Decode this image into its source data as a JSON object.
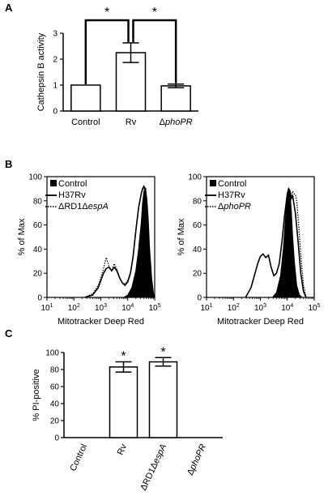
{
  "panels": [
    {
      "letter": "A"
    },
    {
      "letter": "B"
    },
    {
      "letter": "C"
    }
  ],
  "chart_data": [
    {
      "type": "bar",
      "panel": "A",
      "ylabel": "Cathepsin B activity",
      "ylim": [
        0,
        3
      ],
      "yticks": [
        "0",
        "1",
        "2",
        "3"
      ],
      "categories": [
        {
          "pre": "Control",
          "it": "",
          "post": ""
        },
        {
          "pre": "Rv",
          "it": "",
          "post": ""
        },
        {
          "pre": "Δ",
          "it": "phoPR",
          "post": ""
        }
      ],
      "values": [
        1.0,
        2.25,
        0.97
      ],
      "errors": [
        0,
        0.38,
        0.07
      ],
      "significance": [
        {
          "from": 0,
          "to": 1,
          "label": "*"
        },
        {
          "from": 1,
          "to": 2,
          "label": "*"
        }
      ]
    },
    {
      "type": "line",
      "panel": "B-left",
      "ylabel": "% of Max",
      "xlabel": "Mitotracker Deep Red",
      "ylim": [
        0,
        100
      ],
      "yticks": [
        "0",
        "20",
        "40",
        "60",
        "80",
        "100"
      ],
      "xscale": "log",
      "xlim": [
        1,
        5
      ],
      "xticks": [
        {
          "base": "10",
          "exp": "1"
        },
        {
          "base": "10",
          "exp": "2"
        },
        {
          "base": "10",
          "exp": "3"
        },
        {
          "base": "10",
          "exp": "4"
        },
        {
          "base": "10",
          "exp": "5"
        }
      ],
      "legend": [
        {
          "pre": "Control",
          "it": "",
          "mid": "",
          "it2": "",
          "style": "filled"
        },
        {
          "pre": "H37Rv",
          "it": "",
          "mid": "",
          "it2": "",
          "style": "solid"
        },
        {
          "pre": "ΔRD1Δ",
          "it": "espA",
          "mid": "",
          "it2": "",
          "style": "dotted"
        }
      ],
      "series": [
        {
          "style": "filled",
          "x": [
            3.85,
            4.0,
            4.15,
            4.3,
            4.4,
            4.5,
            4.55,
            4.6,
            4.67,
            4.73,
            4.8,
            4.88,
            4.95,
            5.0
          ],
          "y": [
            0,
            2,
            8,
            22,
            40,
            62,
            78,
            88,
            90,
            72,
            42,
            14,
            3,
            0
          ]
        },
        {
          "style": "solid",
          "x": [
            2.4,
            2.7,
            2.9,
            3.0,
            3.1,
            3.2,
            3.3,
            3.4,
            3.5,
            3.6,
            3.7,
            3.8,
            3.9,
            4.0,
            4.1,
            4.2,
            4.3,
            4.4,
            4.5,
            4.55,
            4.6,
            4.65,
            4.7,
            4.75,
            4.8,
            4.88,
            4.95,
            5.0
          ],
          "y": [
            0,
            2,
            8,
            14,
            20,
            24,
            25,
            22,
            25,
            22,
            16,
            12,
            10,
            13,
            20,
            34,
            55,
            74,
            86,
            90,
            92,
            90,
            82,
            66,
            42,
            16,
            3,
            0
          ]
        },
        {
          "style": "dotted",
          "x": [
            2.4,
            2.7,
            2.9,
            3.0,
            3.1,
            3.2,
            3.3,
            3.4,
            3.5,
            3.6,
            3.7,
            3.8,
            3.9,
            4.0,
            4.1,
            4.2,
            4.3,
            4.4,
            4.5,
            4.55,
            4.6,
            4.65,
            4.7,
            4.75,
            4.8,
            4.88,
            4.95,
            5.0
          ],
          "y": [
            0,
            3,
            10,
            16,
            24,
            33,
            26,
            22,
            28,
            23,
            16,
            12,
            11,
            14,
            21,
            35,
            56,
            75,
            86,
            89,
            90,
            88,
            80,
            64,
            40,
            15,
            3,
            0
          ]
        }
      ]
    },
    {
      "type": "line",
      "panel": "B-right",
      "ylabel": "% of Max",
      "xlabel": "Mitotracker Deep Red",
      "ylim": [
        0,
        100
      ],
      "yticks": [
        "0",
        "20",
        "40",
        "60",
        "80",
        "100"
      ],
      "xscale": "log",
      "xlim": [
        1,
        5
      ],
      "xticks": [
        {
          "base": "10",
          "exp": "1"
        },
        {
          "base": "10",
          "exp": "2"
        },
        {
          "base": "10",
          "exp": "3"
        },
        {
          "base": "10",
          "exp": "4"
        },
        {
          "base": "10",
          "exp": "5"
        }
      ],
      "legend": [
        {
          "pre": "Control",
          "it": "",
          "mid": "",
          "it2": "",
          "style": "filled"
        },
        {
          "pre": "H37Rv",
          "it": "",
          "mid": "",
          "it2": "",
          "style": "solid"
        },
        {
          "pre": "Δ",
          "it": "phoPR",
          "mid": "",
          "it2": "",
          "style": "dotted"
        }
      ],
      "series": [
        {
          "style": "filled",
          "x": [
            3.45,
            3.6,
            3.75,
            3.85,
            3.93,
            4.0,
            4.05,
            4.1,
            4.15,
            4.2,
            4.27,
            4.35,
            4.45,
            4.55
          ],
          "y": [
            0,
            4,
            18,
            40,
            65,
            85,
            90,
            86,
            72,
            50,
            28,
            10,
            2,
            0
          ]
        },
        {
          "style": "solid",
          "x": [
            2.45,
            2.65,
            2.8,
            2.9,
            3.0,
            3.1,
            3.2,
            3.3,
            3.4,
            3.5,
            3.6,
            3.7,
            3.8,
            3.9,
            4.0,
            4.05,
            4.1,
            4.15,
            4.2,
            4.3,
            4.4,
            4.5,
            4.6,
            4.7
          ],
          "y": [
            0,
            8,
            20,
            28,
            34,
            36,
            33,
            35,
            25,
            18,
            20,
            28,
            46,
            68,
            86,
            90,
            88,
            82,
            84,
            70,
            46,
            20,
            5,
            0
          ]
        },
        {
          "style": "dotted",
          "x": [
            3.5,
            3.7,
            3.85,
            3.95,
            4.05,
            4.15,
            4.2,
            4.25,
            4.3,
            4.35,
            4.4,
            4.5,
            4.6,
            4.7
          ],
          "y": [
            0,
            5,
            22,
            45,
            68,
            84,
            88,
            86,
            85,
            80,
            66,
            36,
            10,
            0
          ]
        }
      ]
    },
    {
      "type": "bar",
      "panel": "C",
      "ylabel": "% PI-positive",
      "ylim": [
        0,
        100
      ],
      "yticks": [
        "0",
        "20",
        "40",
        "60",
        "80",
        "100"
      ],
      "categories": [
        {
          "pre": "Control",
          "it": "",
          "mid": "",
          "it2": ""
        },
        {
          "pre": "Rv",
          "it": "",
          "mid": "",
          "it2": ""
        },
        {
          "pre": "ΔRD1Δ",
          "it": "espA",
          "mid": "",
          "it2": ""
        },
        {
          "pre": "Δ",
          "it": "phoPR",
          "mid": "",
          "it2": ""
        }
      ],
      "values": [
        0,
        83,
        89,
        0
      ],
      "errors": [
        0,
        6,
        5,
        0
      ],
      "significance_labels": [
        "",
        "*",
        "*",
        ""
      ]
    }
  ]
}
